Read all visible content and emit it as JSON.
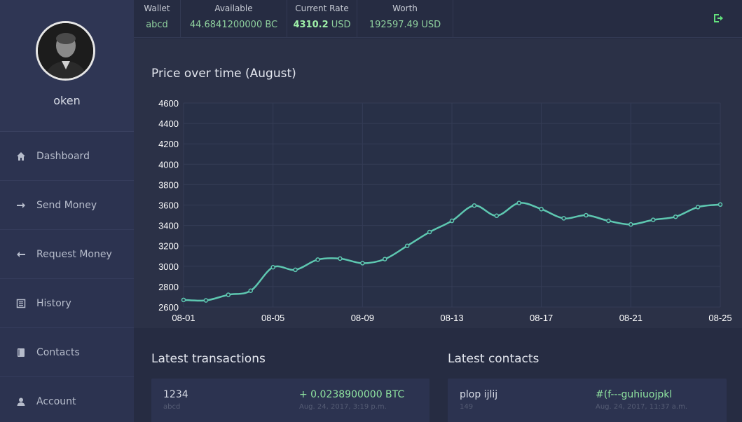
{
  "user": {
    "name": "oken"
  },
  "sidebar": {
    "items": [
      {
        "label": "Dashboard",
        "icon": "home-icon"
      },
      {
        "label": "Send Money",
        "icon": "arrow-right-icon"
      },
      {
        "label": "Request Money",
        "icon": "arrow-left-icon"
      },
      {
        "label": "History",
        "icon": "list-icon"
      },
      {
        "label": "Contacts",
        "icon": "book-icon"
      },
      {
        "label": "Account",
        "icon": "user-icon"
      }
    ]
  },
  "topbar": {
    "wallet": {
      "title": "Wallet",
      "value": "abcd"
    },
    "available": {
      "title": "Available",
      "value": "44.6841200000 BC"
    },
    "rate": {
      "title": "Current Rate",
      "value": "4310.2",
      "unit": "USD"
    },
    "worth": {
      "title": "Worth",
      "value": "192597.49 USD"
    },
    "logout_icon": "sign-out-icon"
  },
  "colors": {
    "accent": "#5ec8b1",
    "positive": "#8fe3a0",
    "panel": "#2b3147"
  },
  "chart_data": {
    "type": "line",
    "title": "Price over time (August)",
    "x_ticks": [
      "08-01",
      "08-05",
      "08-09",
      "08-13",
      "08-17",
      "08-21",
      "08-25"
    ],
    "ylim": [
      2600,
      4600
    ],
    "y_ticks": [
      2600,
      2800,
      3000,
      3200,
      3400,
      3600,
      3800,
      4000,
      4200,
      4400,
      4600
    ],
    "grid": true,
    "series": [
      {
        "x": [
          "08-01",
          "08-02",
          "08-03",
          "08-04",
          "08-05",
          "08-06",
          "08-07",
          "08-08",
          "08-09",
          "08-10",
          "08-11",
          "08-12",
          "08-13",
          "08-14",
          "08-15",
          "08-16",
          "08-17",
          "08-18",
          "08-19",
          "08-20",
          "08-21",
          "08-22",
          "08-23",
          "08-24",
          "08-25"
        ],
        "values": [
          2670,
          2665,
          2720,
          2760,
          2990,
          2965,
          3065,
          3075,
          3030,
          3070,
          3200,
          3335,
          3445,
          3595,
          3495,
          3620,
          3560,
          3470,
          3500,
          3445,
          3410,
          3455,
          3485,
          3580,
          3605
        ]
      }
    ]
  },
  "transactions": {
    "title": "Latest transactions",
    "items": [
      {
        "name": "1234",
        "sub": "abcd",
        "amount": "+ 0.0238900000 BTC",
        "date": "Aug. 24, 2017, 3:19 p.m."
      }
    ]
  },
  "contacts": {
    "title": "Latest contacts",
    "items": [
      {
        "name": "plop ijlij",
        "sub": "149",
        "address": "#(f---guhiuojpkl",
        "date": "Aug. 24, 2017, 11:37 a.m."
      }
    ]
  }
}
